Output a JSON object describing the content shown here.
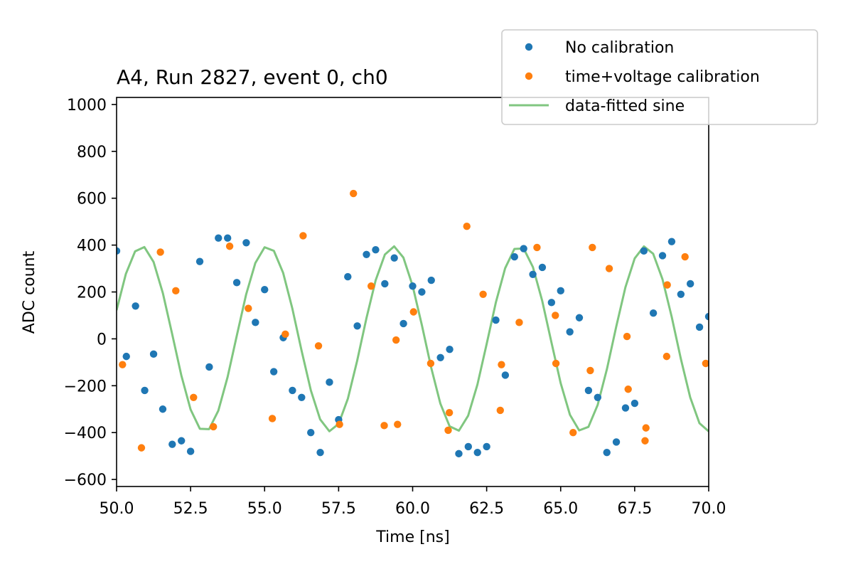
{
  "chart_data": {
    "type": "scatter",
    "title": "A4, Run 2827, event 0, ch0",
    "xlabel": "Time [ns]",
    "ylabel": "ADC count",
    "xlim": [
      50,
      70
    ],
    "ylim": [
      -630,
      1030
    ],
    "xticks": [
      50,
      52.5,
      55,
      57.5,
      60,
      62.5,
      65,
      67.5,
      70
    ],
    "xtick_labels": [
      "50.0",
      "52.5",
      "55.0",
      "57.5",
      "60.0",
      "62.5",
      "65.0",
      "67.5",
      "70.0"
    ],
    "yticks": [
      1000,
      800,
      600,
      400,
      200,
      0,
      -200,
      -400,
      -600
    ],
    "ytick_labels": [
      "1000",
      "800",
      "600",
      "400",
      "200",
      "0",
      "−200",
      "−400",
      "−600"
    ],
    "grid": false,
    "legend_position": "top-right",
    "series": [
      {
        "name": "No calibration",
        "kind": "scatter",
        "color": "#1f77b4",
        "x": [
          50.0,
          50.33,
          50.64,
          50.95,
          51.25,
          51.56,
          51.88,
          52.19,
          52.5,
          52.81,
          53.13,
          53.44,
          53.75,
          54.06,
          54.38,
          54.69,
          55.0,
          55.31,
          55.63,
          55.94,
          56.25,
          56.56,
          56.88,
          57.19,
          57.5,
          57.81,
          58.13,
          58.44,
          58.75,
          59.06,
          59.38,
          59.69,
          60.0,
          60.31,
          60.63,
          60.94,
          61.25,
          61.56,
          61.88,
          62.19,
          62.5,
          62.81,
          63.13,
          63.44,
          63.75,
          64.06,
          64.38,
          64.69,
          65.0,
          65.31,
          65.63,
          65.94,
          66.25,
          66.56,
          66.88,
          67.19,
          67.5,
          67.81,
          68.13,
          68.44,
          68.75,
          69.06,
          69.38,
          69.69,
          70.0
        ],
        "y": [
          375,
          -75,
          140,
          -220,
          -65,
          -300,
          -450,
          -435,
          -480,
          330,
          -120,
          430,
          430,
          240,
          410,
          70,
          210,
          -140,
          5,
          -220,
          -250,
          -400,
          -485,
          -185,
          -345,
          265,
          55,
          360,
          380,
          235,
          345,
          65,
          225,
          200,
          250,
          -80,
          -45,
          -490,
          -460,
          -485,
          -460,
          80,
          -155,
          350,
          385,
          275,
          305,
          155,
          205,
          30,
          90,
          -220,
          -250,
          -485,
          -440,
          -295,
          -275,
          375,
          110,
          355,
          415,
          190,
          235,
          50,
          95
        ]
      },
      {
        "name": "time+voltage calibration",
        "kind": "scatter",
        "color": "#ff7f0e",
        "x": [
          50.2,
          50.84,
          51.48,
          52.0,
          52.6,
          53.27,
          53.82,
          54.45,
          55.26,
          55.7,
          56.3,
          56.82,
          57.53,
          58.0,
          58.6,
          59.04,
          59.44,
          59.49,
          60.03,
          60.61,
          61.2,
          61.24,
          61.83,
          62.38,
          62.96,
          63.0,
          63.6,
          64.2,
          64.82,
          64.84,
          65.42,
          66.0,
          66.07,
          66.64,
          67.24,
          67.28,
          67.85,
          67.88,
          68.58,
          68.6,
          69.2,
          69.9
        ],
        "y": [
          -110,
          -465,
          370,
          205,
          -250,
          -375,
          395,
          130,
          -340,
          20,
          440,
          -30,
          -365,
          620,
          225,
          -370,
          -5,
          -365,
          115,
          -105,
          -390,
          -315,
          480,
          190,
          -305,
          -110,
          70,
          390,
          100,
          -105,
          -400,
          -135,
          390,
          300,
          10,
          -215,
          -435,
          -380,
          -75,
          230,
          350,
          -105
        ]
      },
      {
        "name": "data-fitted sine",
        "kind": "line",
        "color": "#2ca02c",
        "amplitude": 395,
        "period_ns": 4.25,
        "phase_peak_ns": 50.85
      }
    ]
  }
}
